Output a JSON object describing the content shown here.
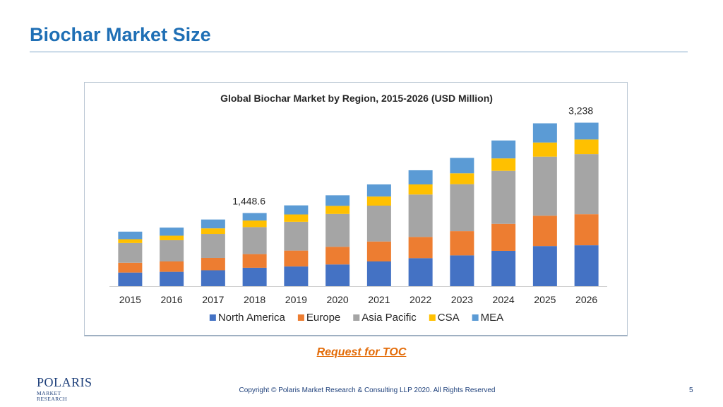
{
  "slide": {
    "title": "Biochar Market Size",
    "toc_link": "Request for TOC",
    "logo_main": "POLARIS",
    "logo_sub": "MARKET RESEARCH",
    "copyright": "Copyright © Polaris Market Research & Consulting LLP 2020. All Rights Reserved",
    "page_number": "5"
  },
  "chart_data": {
    "type": "bar",
    "stacked": true,
    "title": "Global Biochar Market by Region, 2015-2026  (USD Million)",
    "xlabel": "",
    "ylabel": "",
    "categories": [
      "2015",
      "2016",
      "2017",
      "2018",
      "2019",
      "2020",
      "2021",
      "2022",
      "2023",
      "2024",
      "2025",
      "2026"
    ],
    "ylim": [
      0,
      3400
    ],
    "grid": false,
    "legend": "bottom",
    "series": [
      {
        "name": "North America",
        "color": "#4472c4",
        "values": [
          270,
          285,
          315,
          365,
          390,
          430,
          490,
          555,
          610,
          700,
          795,
          810
        ]
      },
      {
        "name": "Europe",
        "color": "#ed7d31",
        "values": [
          195,
          205,
          245,
          270,
          315,
          350,
          395,
          420,
          480,
          535,
          600,
          615
        ]
      },
      {
        "name": "Asia Pacific",
        "color": "#a5a5a5",
        "values": [
          390,
          420,
          475,
          535,
          570,
          650,
          710,
          840,
          930,
          1050,
          1170,
          1190
        ]
      },
      {
        "name": "CSA",
        "color": "#ffc000",
        "values": [
          75,
          90,
          110,
          130,
          145,
          160,
          180,
          200,
          215,
          245,
          280,
          290
        ]
      },
      {
        "name": "MEA",
        "color": "#5b9bd5",
        "values": [
          150,
          160,
          175,
          148.6,
          180,
          210,
          240,
          280,
          305,
          355,
          380,
          333
        ]
      }
    ],
    "annotations": [
      {
        "category": "2018",
        "text": "1,448.6"
      },
      {
        "category": "2026",
        "text": "3,238"
      }
    ]
  }
}
